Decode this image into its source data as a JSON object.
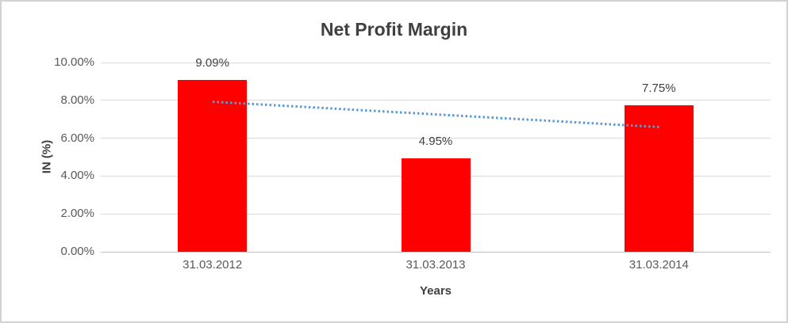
{
  "chart_data": {
    "type": "bar",
    "title": "Net Profit Margin",
    "xlabel": "Years",
    "ylabel": "IN (%)",
    "categories": [
      "31.03.2012",
      "31.03.2013",
      "31.03.2014"
    ],
    "values": [
      9.09,
      4.95,
      7.75
    ],
    "data_labels": [
      "9.09%",
      "4.95%",
      "7.75%"
    ],
    "y_tick_values": [
      0,
      2,
      4,
      6,
      8,
      10
    ],
    "y_tick_labels": [
      "0.00%",
      "2.00%",
      "4.00%",
      "6.00%",
      "8.00%",
      "10.00%"
    ],
    "ylim": [
      0,
      10
    ],
    "grid": true,
    "legend_position": "none",
    "bar_color": "#ff0000",
    "trendline": {
      "type": "linear",
      "style": "dotted",
      "color": "#5b9bd5"
    },
    "colors": {
      "title_text": "#404040",
      "axis_title_text": "#404040",
      "tick_text": "#595959",
      "data_label_text": "#404040",
      "gridline": "#d9d9d9",
      "axis_line": "#bfbfbf",
      "frame_border": "#d2d2d2",
      "background": "#ffffff"
    }
  }
}
